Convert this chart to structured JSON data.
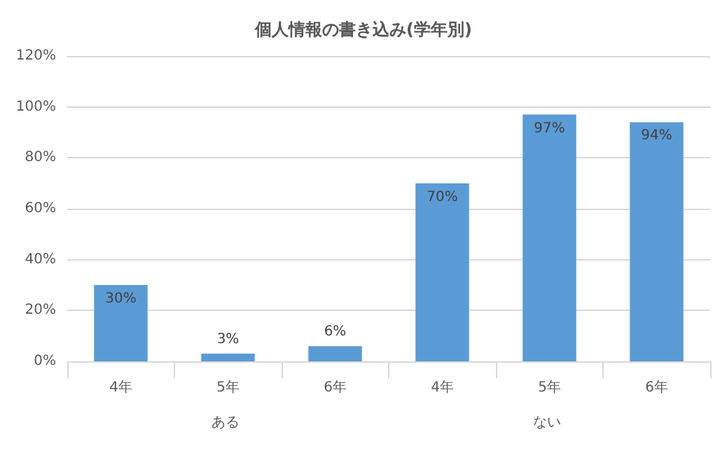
{
  "chart_data": {
    "type": "bar",
    "title": "個人情報の書き込み(学年別)",
    "categories": [
      "4年",
      "5年",
      "6年",
      "4年",
      "5年",
      "6年"
    ],
    "values": [
      30,
      3,
      6,
      70,
      97,
      94
    ],
    "value_labels": [
      "30%",
      "3%",
      "6%",
      "70%",
      "97%",
      "94%"
    ],
    "color": "#5b9bd5",
    "ylim": [
      0,
      120
    ],
    "yticks": [
      {
        "value": 0,
        "label": "0%"
      },
      {
        "value": 20,
        "label": "20%"
      },
      {
        "value": 40,
        "label": "40%"
      },
      {
        "value": 60,
        "label": "60%"
      },
      {
        "value": 80,
        "label": "80%"
      },
      {
        "value": 100,
        "label": "100%"
      },
      {
        "value": 120,
        "label": "120%"
      }
    ],
    "grid": "y",
    "annotations": [
      "ある",
      "ない"
    ]
  }
}
